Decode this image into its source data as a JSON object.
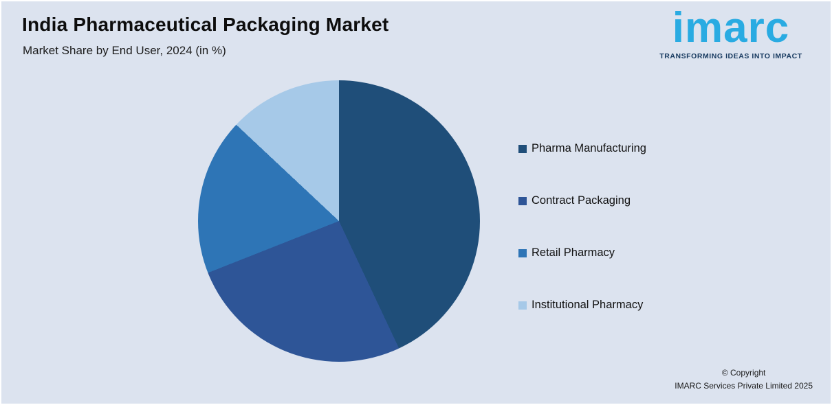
{
  "background_color": "#dce3ef",
  "header": {
    "title": "India Pharmaceutical Packaging Market",
    "subtitle": "Market Share by End User, 2024 (in %)"
  },
  "logo": {
    "text": "imarc",
    "tagline": "TRANSFORMING IDEAS INTO IMPACT",
    "brand_color": "#29abe2",
    "tagline_color": "#16395f"
  },
  "chart_data": {
    "type": "pie",
    "title": "Market Share by End User, 2024 (in %)",
    "labels": [
      "Pharma Manufacturing",
      "Contract Packaging",
      "Retail Pharmacy",
      "Institutional Pharmacy"
    ],
    "values": [
      43,
      26,
      18,
      13
    ],
    "colors": [
      "#1f4e79",
      "#2e5597",
      "#2e75b6",
      "#a6c9e8"
    ],
    "start_angle_deg": 0,
    "direction": "clockwise",
    "legend_position": "right",
    "data_labels": false
  },
  "legend": {
    "items": [
      {
        "label": "Pharma Manufacturing",
        "color": "#1f4e79"
      },
      {
        "label": "Contract Packaging",
        "color": "#2e5597"
      },
      {
        "label": "Retail Pharmacy",
        "color": "#2e75b6"
      },
      {
        "label": "Institutional Pharmacy",
        "color": "#a6c9e8"
      }
    ]
  },
  "footer": {
    "copyright_line1": "© Copyright",
    "copyright_line2": "IMARC Services Private Limited 2025"
  }
}
